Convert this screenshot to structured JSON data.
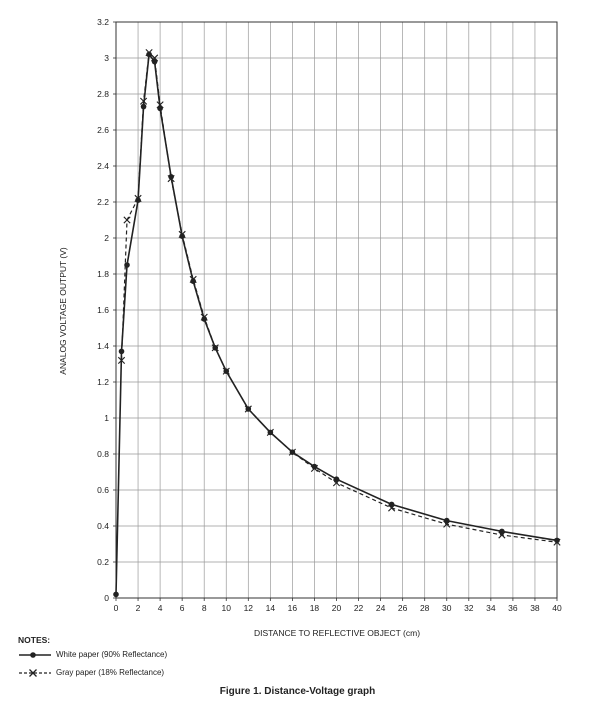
{
  "chart_data": {
    "type": "line",
    "title": "",
    "xlabel": "DISTANCE TO REFLECTIVE OBJECT (cm)",
    "ylabel": "ANALOG VOLTAGE OUTPUT (V)",
    "xlim": [
      0,
      40
    ],
    "ylim": [
      0,
      3.2
    ],
    "xticks": [
      0,
      2,
      4,
      6,
      8,
      10,
      12,
      14,
      16,
      18,
      20,
      22,
      24,
      26,
      28,
      30,
      32,
      34,
      36,
      38,
      40
    ],
    "yticks": [
      0,
      0.2,
      0.4,
      0.6,
      0.8,
      1,
      1.2,
      1.4,
      1.6,
      1.8,
      2,
      2.2,
      2.4,
      2.6,
      2.8,
      3,
      3.2
    ],
    "xtick_labels": [
      "0",
      "2",
      "4",
      "6",
      "8",
      "10",
      "12",
      "14",
      "16",
      "18",
      "20",
      "22",
      "24",
      "26",
      "28",
      "30",
      "32",
      "34",
      "36",
      "38",
      "40"
    ],
    "ytick_labels": [
      "0",
      "0.2",
      "0.4",
      "0.6",
      "0.8",
      "1",
      "1.2",
      "1.4",
      "1.6",
      "1.8",
      "2",
      "2.2",
      "2.4",
      "2.6",
      "2.8",
      "3",
      "3.2"
    ],
    "grid": true,
    "legend_position": "bottom-left",
    "series": [
      {
        "name": "White paper (90% Reflectance)",
        "style": "solid",
        "marker": "circle",
        "color": "#222222",
        "points": [
          [
            0,
            0.02
          ],
          [
            0.5,
            1.37
          ],
          [
            1,
            1.85
          ],
          [
            2,
            2.21
          ],
          [
            2.5,
            2.73
          ],
          [
            3,
            3.02
          ],
          [
            3.5,
            2.98
          ],
          [
            4,
            2.72
          ],
          [
            5,
            2.34
          ],
          [
            6,
            2.01
          ],
          [
            7,
            1.76
          ],
          [
            8,
            1.55
          ],
          [
            9,
            1.39
          ],
          [
            10,
            1.26
          ],
          [
            12,
            1.05
          ],
          [
            14,
            0.92
          ],
          [
            16,
            0.81
          ],
          [
            18,
            0.73
          ],
          [
            20,
            0.66
          ],
          [
            25,
            0.52
          ],
          [
            30,
            0.43
          ],
          [
            35,
            0.37
          ],
          [
            40,
            0.32
          ]
        ]
      },
      {
        "name": "Gray paper (18% Reflectance)",
        "style": "dashed",
        "marker": "x",
        "color": "#222222",
        "points": [
          [
            0.5,
            1.32
          ],
          [
            1,
            2.1
          ],
          [
            2,
            2.22
          ],
          [
            2.5,
            2.76
          ],
          [
            3,
            3.03
          ],
          [
            3.5,
            3.0
          ],
          [
            4,
            2.74
          ],
          [
            5,
            2.33
          ],
          [
            6,
            2.02
          ],
          [
            7,
            1.77
          ],
          [
            8,
            1.56
          ],
          [
            9,
            1.39
          ],
          [
            10,
            1.26
          ],
          [
            12,
            1.05
          ],
          [
            14,
            0.92
          ],
          [
            16,
            0.81
          ],
          [
            18,
            0.72
          ],
          [
            20,
            0.64
          ],
          [
            25,
            0.5
          ],
          [
            30,
            0.41
          ],
          [
            35,
            0.35
          ],
          [
            40,
            0.31
          ]
        ]
      }
    ]
  },
  "notes": {
    "title": "NOTES:",
    "legend": [
      {
        "label": "White paper (90% Reflectance)",
        "marker": "circle",
        "style": "solid"
      },
      {
        "label": "Gray paper (18% Reflectance)",
        "marker": "x",
        "style": "dashed"
      }
    ]
  },
  "caption": "Figure 1. Distance-Voltage graph"
}
